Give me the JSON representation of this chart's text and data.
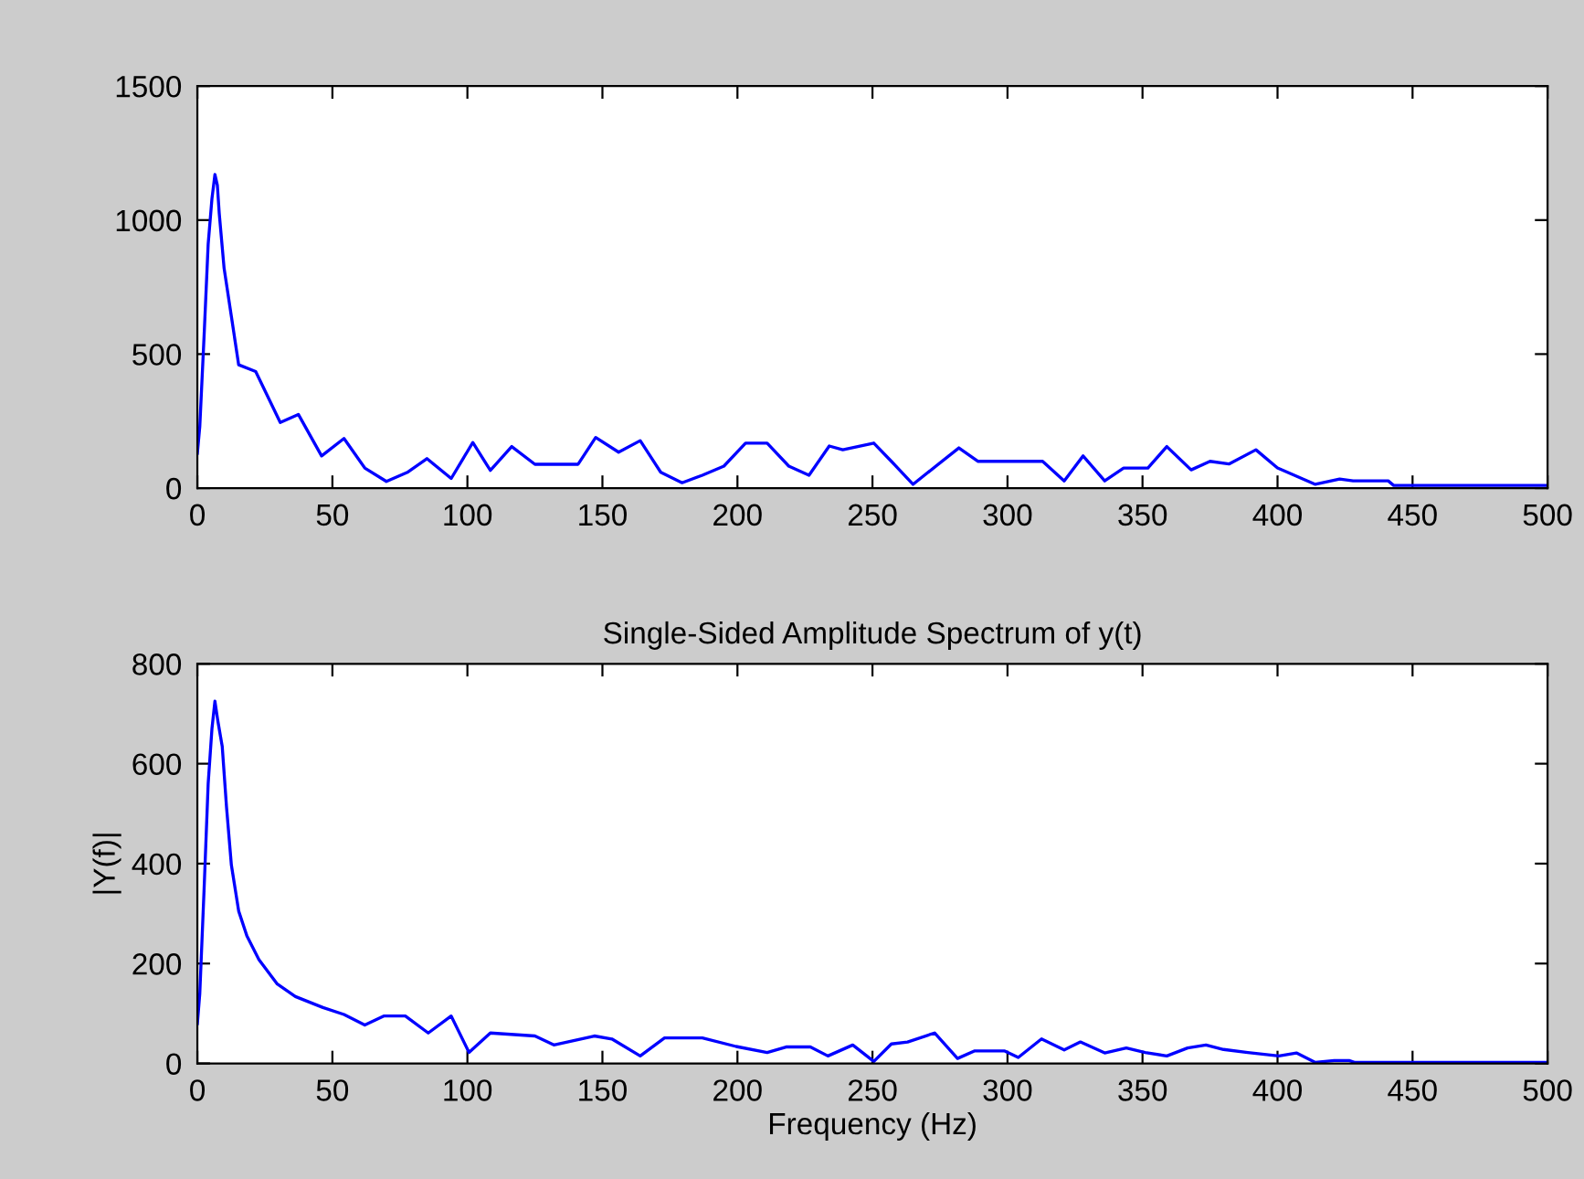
{
  "chart_data": [
    {
      "type": "line",
      "x": [
        0,
        0.9,
        2.5,
        4,
        5.4,
        6.5,
        7.4,
        8.1,
        9.9,
        12.6,
        15.3,
        21.6,
        30.7,
        37.4,
        46,
        54.3,
        62,
        70,
        78,
        85,
        94,
        102,
        108.5,
        116.4,
        125,
        141,
        147.5,
        156,
        164,
        171.6,
        179.5,
        187,
        195,
        203,
        211,
        219,
        226.5,
        234,
        239,
        250.5,
        257,
        265,
        282,
        289,
        300,
        308,
        313,
        321,
        328,
        336,
        343,
        352,
        359,
        368,
        375,
        382,
        392,
        400,
        414,
        423,
        428,
        441,
        443,
        500
      ],
      "series": [
        {
          "color": "#0000ff",
          "values": [
            130,
            230,
            570,
            910,
            1080,
            1170,
            1130,
            1025,
            820,
            640,
            460,
            435,
            245,
            275,
            120,
            185,
            75,
            25,
            60,
            110,
            36,
            170,
            66,
            155,
            89,
            89,
            189,
            134,
            177,
            59,
            20,
            48,
            82,
            168,
            168,
            82,
            48,
            157,
            143,
            168,
            100,
            14,
            150,
            100,
            100,
            100,
            100,
            27,
            120,
            27,
            75,
            75,
            155,
            68,
            100,
            90,
            143,
            75,
            14,
            34,
            27,
            27,
            10,
            10
          ]
        }
      ],
      "xlim": [
        0,
        500
      ],
      "xticks": [
        0,
        50,
        100,
        150,
        200,
        250,
        300,
        350,
        400,
        450,
        500
      ],
      "ylim": [
        0,
        1500
      ],
      "yticks": [
        0,
        500,
        1000,
        1500
      ]
    },
    {
      "type": "line",
      "title": "Single-Sided Amplitude Spectrum of y(t)",
      "xlabel": "Frequency (Hz)",
      "ylabel": "|Y(f)|",
      "x": [
        0,
        0.9,
        2.5,
        4,
        5.4,
        6.5,
        7.6,
        9.2,
        10.8,
        12.6,
        15.3,
        18.3,
        22.8,
        29.6,
        36.3,
        46.5,
        54.3,
        62,
        69,
        77,
        85.5,
        94,
        100.6,
        108.5,
        125,
        132,
        147,
        153.5,
        164,
        173,
        187,
        199.5,
        211,
        218,
        227,
        233.5,
        242.7,
        250.5,
        257,
        263,
        273,
        281.5,
        287.7,
        299,
        304,
        312.6,
        321,
        327,
        336,
        344,
        351,
        359,
        366.7,
        373.5,
        380,
        389,
        400.5,
        407,
        414,
        421,
        426.5,
        428.7,
        500
      ],
      "series": [
        {
          "color": "#0000ff",
          "values": [
            80,
            140,
            350,
            560,
            670,
            725,
            685,
            635,
            513,
            397,
            305,
            256,
            208,
            159,
            134,
            112,
            98,
            77,
            95,
            95,
            61,
            95,
            22,
            61,
            55,
            37,
            55,
            49,
            15,
            51,
            51,
            34,
            22,
            33,
            33,
            15,
            37,
            4,
            39,
            43,
            61,
            10,
            25,
            25,
            12,
            49,
            27,
            43,
            21,
            31,
            22,
            15,
            31,
            37,
            28,
            22,
            15,
            21,
            2,
            6,
            6,
            2,
            2
          ]
        }
      ],
      "xlim": [
        0,
        500
      ],
      "xticks": [
        0,
        50,
        100,
        150,
        200,
        250,
        300,
        350,
        400,
        450,
        500
      ],
      "ylim": [
        0,
        800
      ],
      "yticks": [
        0,
        200,
        400,
        600,
        800
      ]
    }
  ]
}
